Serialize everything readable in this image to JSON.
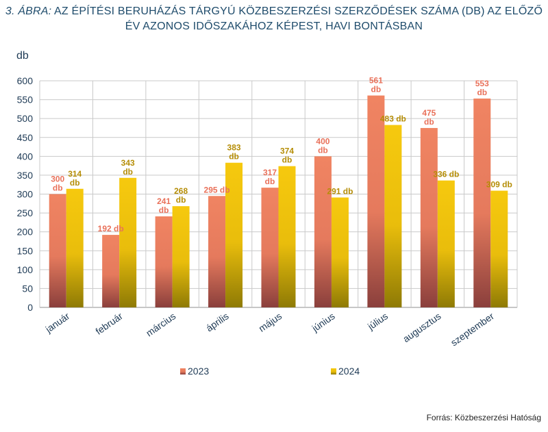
{
  "title": {
    "prefix": "3. ÁBRA:",
    "text": "AZ ÉPÍTÉSI BERUHÁZÁS TÁRGYÚ KÖZBESZERZÉSI SZERZŐDÉSEK SZÁMA (DB) AZ ELŐZŐ ÉV AZONOS IDŐSZAKÁHOZ KÉPEST, HAVI BONTÁSBAN"
  },
  "source": "Forrás: Közbeszerzési Hatóság",
  "chart_data": {
    "type": "bar",
    "unit_label": "db",
    "categories": [
      "január",
      "február",
      "március",
      "április",
      "május",
      "június",
      "július",
      "augusztus",
      "szeptember"
    ],
    "series": [
      {
        "name": "2023",
        "color": "#ee8060",
        "values": [
          300,
          192,
          241,
          295,
          317,
          400,
          561,
          475,
          553
        ],
        "labels": [
          "300 db",
          "192 db",
          "241 db",
          "295 db",
          "317 db",
          "400 db",
          "561 db",
          "475 db",
          "553 db"
        ]
      },
      {
        "name": "2024",
        "color": "#f2c410",
        "values": [
          314,
          343,
          268,
          383,
          374,
          291,
          483,
          336,
          309
        ],
        "labels": [
          "314 db",
          "343 db",
          "268 db",
          "383 db",
          "374 db",
          "291 db",
          "483 db",
          "336 db",
          "309 db"
        ]
      }
    ],
    "ylim": [
      0,
      600
    ],
    "yticks": [
      0,
      50,
      100,
      150,
      200,
      250,
      300,
      350,
      400,
      450,
      500,
      550,
      600
    ],
    "grid": true,
    "legend_position": "bottom"
  }
}
